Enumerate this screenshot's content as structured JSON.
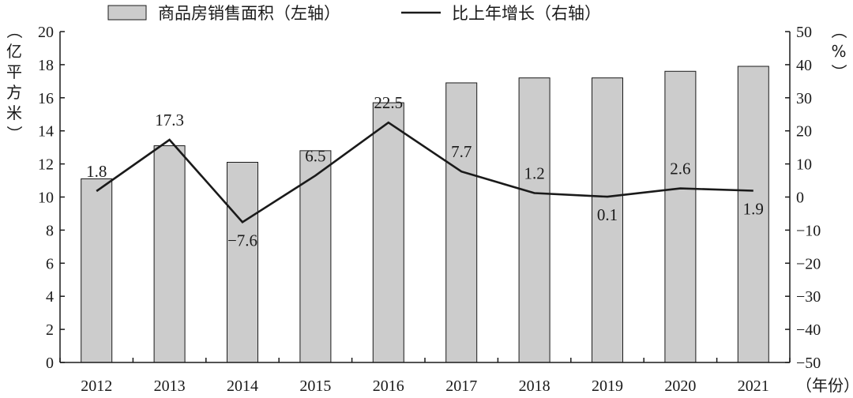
{
  "chart_data": {
    "type": "bar",
    "categories": [
      "2012",
      "2013",
      "2014",
      "2015",
      "2016",
      "2017",
      "2018",
      "2019",
      "2020",
      "2021"
    ],
    "series": [
      {
        "name": "商品房销售面积（左轴）",
        "type": "bar",
        "axis": "left",
        "values": [
          11.1,
          13.1,
          12.1,
          12.8,
          15.7,
          16.9,
          17.2,
          17.2,
          17.6,
          17.9
        ],
        "color": "#cccccc"
      },
      {
        "name": "比上年增长（右轴）",
        "type": "line",
        "axis": "right",
        "values": [
          1.8,
          17.3,
          -7.6,
          6.5,
          22.5,
          7.7,
          1.2,
          0.1,
          2.6,
          1.9
        ],
        "labels": [
          "1.8",
          "17.3",
          "−7.6",
          "6.5",
          "22.5",
          "7.7",
          "1.2",
          "0.1",
          "2.6",
          "1.9"
        ],
        "color": "#1a1a1a"
      }
    ],
    "ylabel_left": "（亿平方米）",
    "ylabel_right": "（%）",
    "xlabel": "（年份）",
    "ylim_left": [
      0,
      20
    ],
    "ylim_right": [
      -50,
      50
    ],
    "yticks_left": [
      "0",
      "2",
      "4",
      "6",
      "8",
      "10",
      "12",
      "14",
      "16",
      "18",
      "20"
    ],
    "yticks_right": [
      "−50",
      "−40",
      "−30",
      "−20",
      "−10",
      "0",
      "10",
      "20",
      "30",
      "40",
      "50"
    ],
    "grid": false,
    "legend_position": "top"
  }
}
